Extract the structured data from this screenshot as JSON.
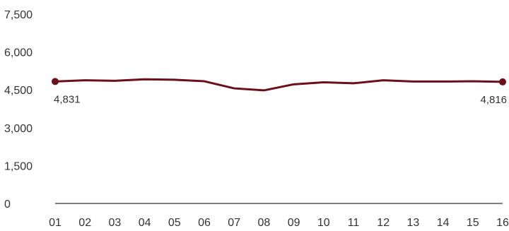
{
  "chart_data": {
    "type": "line",
    "x": [
      "01",
      "02",
      "03",
      "04",
      "05",
      "06",
      "07",
      "08",
      "09",
      "10",
      "11",
      "12",
      "13",
      "14",
      "15",
      "16"
    ],
    "series": [
      {
        "values": [
          4831,
          4880,
          4860,
          4920,
          4900,
          4840,
          4560,
          4480,
          4720,
          4800,
          4760,
          4880,
          4830,
          4830,
          4840,
          4816
        ]
      }
    ],
    "yticks": [
      "0",
      "1,500",
      "3,000",
      "4,500",
      "6,000",
      "7,500"
    ],
    "ylim": [
      0,
      7500
    ],
    "data_labels": [
      {
        "index": 0,
        "text": "4,831"
      },
      {
        "index": 15,
        "text": "4,816"
      }
    ],
    "grid": false,
    "colors": {
      "line": "#6b0f1a",
      "axis": "#333333",
      "text": "#333333"
    }
  }
}
